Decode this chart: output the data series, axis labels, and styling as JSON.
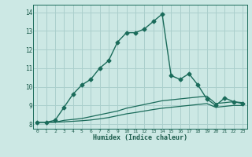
{
  "xlabel": "Humidex (Indice chaleur)",
  "background_color": "#cce8e4",
  "grid_color": "#aacfcc",
  "line_color": "#1a6b5a",
  "xlim": [
    -0.5,
    23.5
  ],
  "ylim": [
    7.75,
    14.4
  ],
  "x_ticks": [
    0,
    1,
    2,
    3,
    4,
    5,
    6,
    7,
    8,
    9,
    10,
    11,
    12,
    13,
    14,
    15,
    16,
    17,
    18,
    19,
    20,
    21,
    22,
    23
  ],
  "y_ticks": [
    8,
    9,
    10,
    11,
    12,
    13,
    14
  ],
  "series1_x": [
    0,
    1,
    2,
    3,
    4,
    5,
    6,
    7,
    8,
    9,
    10,
    11,
    12,
    13,
    14,
    15,
    16,
    17,
    18,
    19,
    20,
    21,
    22,
    23
  ],
  "series1_y": [
    8.1,
    8.1,
    8.2,
    8.9,
    9.6,
    10.1,
    10.4,
    11.0,
    11.4,
    12.4,
    12.9,
    12.9,
    13.1,
    13.5,
    13.9,
    10.6,
    10.4,
    10.7,
    10.1,
    9.35,
    9.0,
    9.4,
    9.2,
    9.1
  ],
  "series2_x": [
    0,
    1,
    2,
    3,
    4,
    5,
    6,
    7,
    8,
    9,
    10,
    11,
    12,
    13,
    14,
    15,
    16,
    17,
    18,
    19,
    20,
    21,
    22,
    23
  ],
  "series2_y": [
    8.1,
    8.1,
    8.1,
    8.2,
    8.25,
    8.3,
    8.4,
    8.5,
    8.6,
    8.7,
    8.85,
    8.95,
    9.05,
    9.15,
    9.25,
    9.3,
    9.35,
    9.4,
    9.45,
    9.5,
    9.1,
    9.15,
    9.2,
    9.15
  ],
  "series3_x": [
    0,
    1,
    2,
    3,
    4,
    5,
    6,
    7,
    8,
    9,
    10,
    11,
    12,
    13,
    14,
    15,
    16,
    17,
    18,
    19,
    20,
    21,
    22,
    23
  ],
  "series3_y": [
    8.1,
    8.1,
    8.1,
    8.12,
    8.15,
    8.18,
    8.22,
    8.28,
    8.35,
    8.45,
    8.55,
    8.62,
    8.7,
    8.78,
    8.85,
    8.9,
    8.95,
    9.0,
    9.05,
    9.1,
    8.9,
    8.95,
    9.0,
    9.0
  ]
}
